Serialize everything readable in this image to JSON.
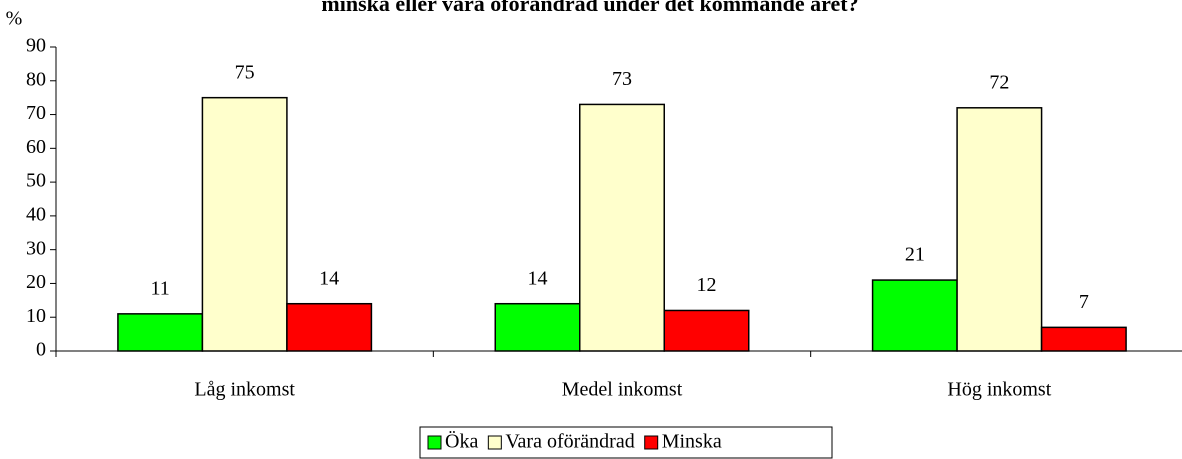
{
  "chart_data": {
    "type": "bar",
    "title": "minska eller vara oförändrad under det kommande året?",
    "y_label": "%",
    "categories": [
      "Låg inkomst",
      "Medel inkomst",
      "Hög inkomst"
    ],
    "series": [
      {
        "name": "Öka",
        "color": "#00ff00",
        "values": [
          11,
          14,
          21
        ]
      },
      {
        "name": "Vara oförändrad",
        "color": "#ffffcc",
        "values": [
          75,
          73,
          72
        ]
      },
      {
        "name": "Minska",
        "color": "#ff0000",
        "values": [
          14,
          12,
          7
        ]
      }
    ],
    "ylim": [
      0,
      90
    ],
    "yticks": [
      0,
      10,
      20,
      30,
      40,
      50,
      60,
      70,
      80,
      90
    ]
  }
}
